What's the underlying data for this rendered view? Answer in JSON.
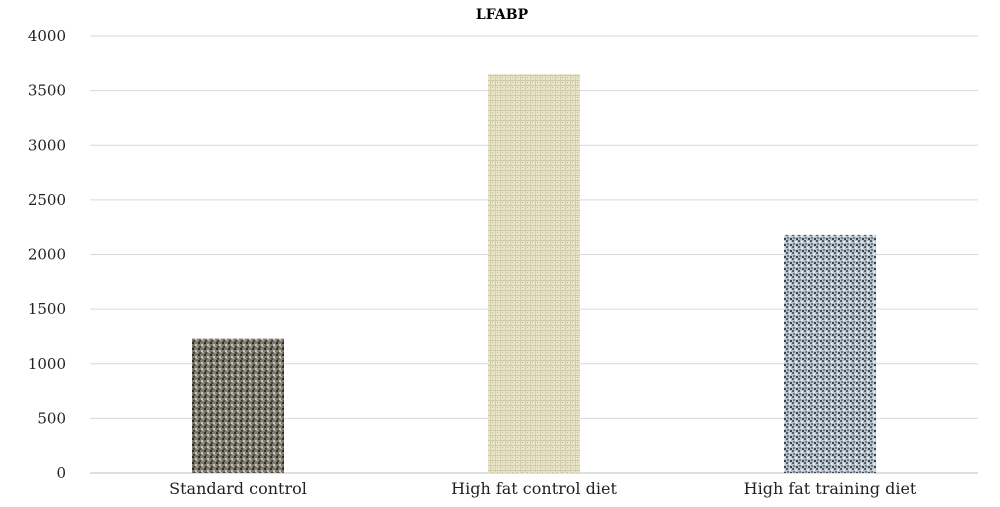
{
  "chart_data": {
    "type": "bar",
    "title": "LFABP",
    "categories": [
      "Standard control",
      "High fat control diet",
      "High fat training diet"
    ],
    "values": [
      1230,
      3650,
      2180
    ],
    "xlabel": "",
    "ylabel": "",
    "ylim": [
      0,
      4000
    ],
    "yticks": [
      0,
      500,
      1000,
      1500,
      2000,
      2500,
      3000,
      3500,
      4000
    ],
    "grid": true,
    "legend": "none",
    "colors": [
      "#8a867a",
      "#e0dcc0",
      "#a6b2bd"
    ]
  }
}
